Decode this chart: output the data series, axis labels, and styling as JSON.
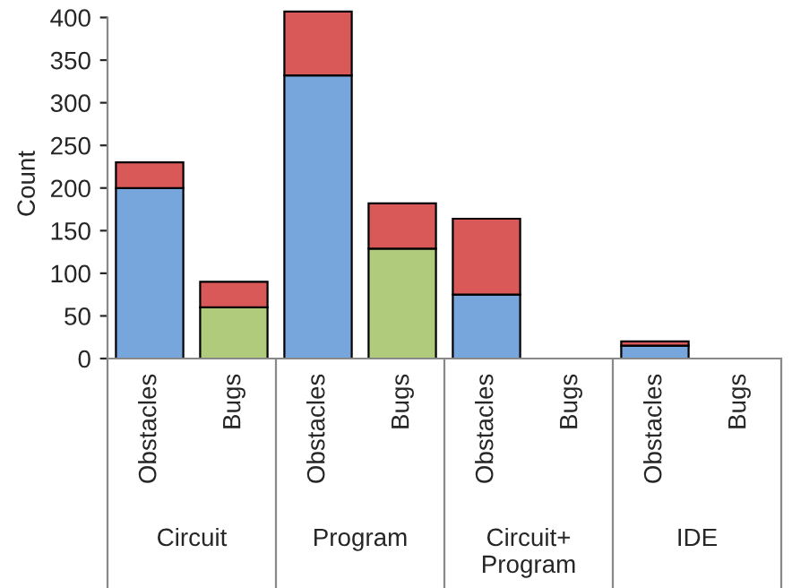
{
  "chart_data": {
    "type": "bar",
    "stacked": true,
    "ylabel": "Count",
    "categories": [
      "Obstacles",
      "Bugs",
      "Obstacles",
      "Bugs",
      "Obstacles",
      "Bugs",
      "Obstacles",
      "Bugs"
    ],
    "series": [
      {
        "colors": [
          "#77a6dc",
          "#b0cb7c",
          "#77a6dc",
          "#b0cb7c",
          "#77a6dc",
          "#b0cb7c",
          "#77a6dc",
          "#b0cb7c"
        ],
        "values": [
          200,
          60,
          332,
          129,
          75,
          null,
          15,
          null
        ]
      },
      {
        "color": "#d95858",
        "values": [
          30,
          30,
          75,
          53,
          89,
          null,
          5,
          null
        ]
      }
    ],
    "annotations": [
      "Circuit",
      "Program",
      "Circuit+\nProgram",
      "IDE"
    ],
    "ylim": [
      0,
      410
    ],
    "yticks": [
      0,
      50,
      100,
      150,
      200,
      250,
      300,
      350,
      400
    ],
    "grid": false,
    "legend": false
  }
}
